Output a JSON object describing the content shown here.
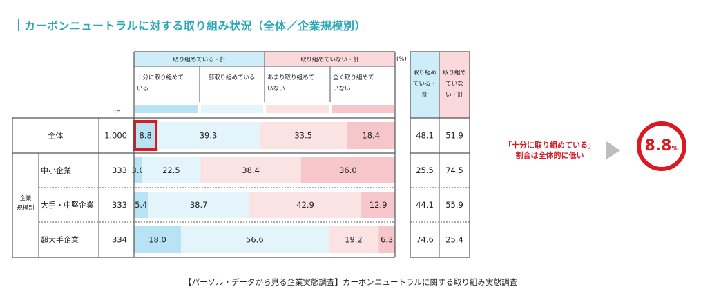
{
  "title": "カーボンニュートラルに対する取り組み状況（全体／企業規模別）",
  "caption": "【パーソル・データから見る企業実態調査】カーボンニュートラルに関する取り組み実態調査",
  "note": {
    "line1": "「十分に取り組めている」",
    "line2": "割合は全体的に低い"
  },
  "highlight": {
    "value": "8.8",
    "unit": "%"
  },
  "colors": {
    "title": "#2aa7b8",
    "accent_red": "#d81b23",
    "c1": "#b8e3f5",
    "c2": "#e3f4fb",
    "c3": "#fbe3e4",
    "c4": "#f7c6ca",
    "head_blue": "#cdeef8",
    "head_pink": "#fbd8db",
    "grid": "#555555"
  },
  "chart_data": {
    "type": "bar",
    "stacked": true,
    "unit_label": "(%)",
    "n_label": "n=",
    "group_headers": [
      "取り組めている・計",
      "取り組めていない・計"
    ],
    "group_label_sub": "企業規模別",
    "group_label_sub_lines": [
      "企業",
      "規模別"
    ],
    "series": [
      {
        "name": "十分に取り組めている",
        "name_lines": [
          "十分に取り組めて",
          "いる"
        ]
      },
      {
        "name": "一部取り組めている",
        "name_lines": [
          "一部取り組めている"
        ]
      },
      {
        "name": "あまり取り組めていない",
        "name_lines": [
          "あまり取り組めて",
          "いない"
        ]
      },
      {
        "name": "全く取り組めていない",
        "name_lines": [
          "全く取り組めて",
          "いない"
        ]
      }
    ],
    "summary_headers": [
      {
        "name": "取り組めている・計",
        "lines": [
          "取り組め",
          "ている・",
          "計"
        ]
      },
      {
        "name": "取り組めていない・計",
        "lines": [
          "取り組め",
          "ていな",
          "い・計"
        ]
      }
    ],
    "rows": [
      {
        "label": "全体",
        "n": "1,000",
        "values": [
          8.8,
          39.3,
          33.5,
          18.4
        ],
        "labels": [
          "8.8",
          "39.3",
          "33.5",
          "18.4"
        ],
        "summary": [
          "48.1",
          "51.9"
        ]
      },
      {
        "label": "中小企業",
        "n": "333",
        "values": [
          3.0,
          22.5,
          38.4,
          36.0
        ],
        "labels": [
          "3.0",
          "22.5",
          "38.4",
          "36.0"
        ],
        "summary": [
          "25.5",
          "74.5"
        ]
      },
      {
        "label": "大手・中堅企業",
        "n": "333",
        "values": [
          5.4,
          38.7,
          42.9,
          12.9
        ],
        "labels": [
          "5.4",
          "38.7",
          "42.9",
          "12.9"
        ],
        "summary": [
          "44.1",
          "55.9"
        ]
      },
      {
        "label": "超大手企業",
        "n": "334",
        "values": [
          18.0,
          56.6,
          19.2,
          6.3
        ],
        "labels": [
          "18.0",
          "56.6",
          "19.2",
          "6.3"
        ],
        "summary": [
          "74.6",
          "25.4"
        ]
      }
    ],
    "xlim": [
      0,
      100
    ]
  }
}
